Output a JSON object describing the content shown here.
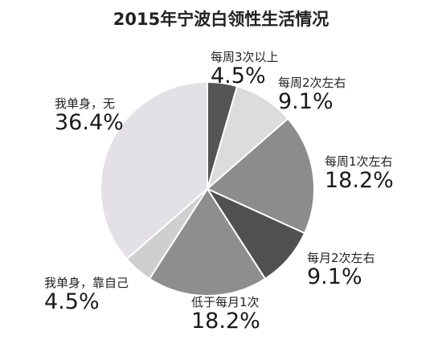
{
  "chart_data": {
    "type": "pie",
    "title": "2015年宁波白领性生活情况",
    "slices": [
      {
        "label": "每周3次以上",
        "value": 4.5,
        "display": "4.5%",
        "color": "#555555"
      },
      {
        "label": "每周2次左右",
        "value": 9.1,
        "display": "9.1%",
        "color": "#dcdcdc"
      },
      {
        "label": "每周1次左右",
        "value": 18.2,
        "display": "18.2%",
        "color": "#8c8c8c"
      },
      {
        "label": "每月2次左右",
        "value": 9.1,
        "display": "9.1%",
        "color": "#505050"
      },
      {
        "label": "低于每月1次",
        "value": 18.2,
        "display": "18.2%",
        "color": "#8e8e8e"
      },
      {
        "label": "我单身，靠自己",
        "value": 4.5,
        "display": "4.5%",
        "color": "#cfcfcf"
      },
      {
        "label": "我单身，无",
        "value": 36.4,
        "display": "36.4%",
        "color": "#e3e1e5"
      }
    ]
  }
}
